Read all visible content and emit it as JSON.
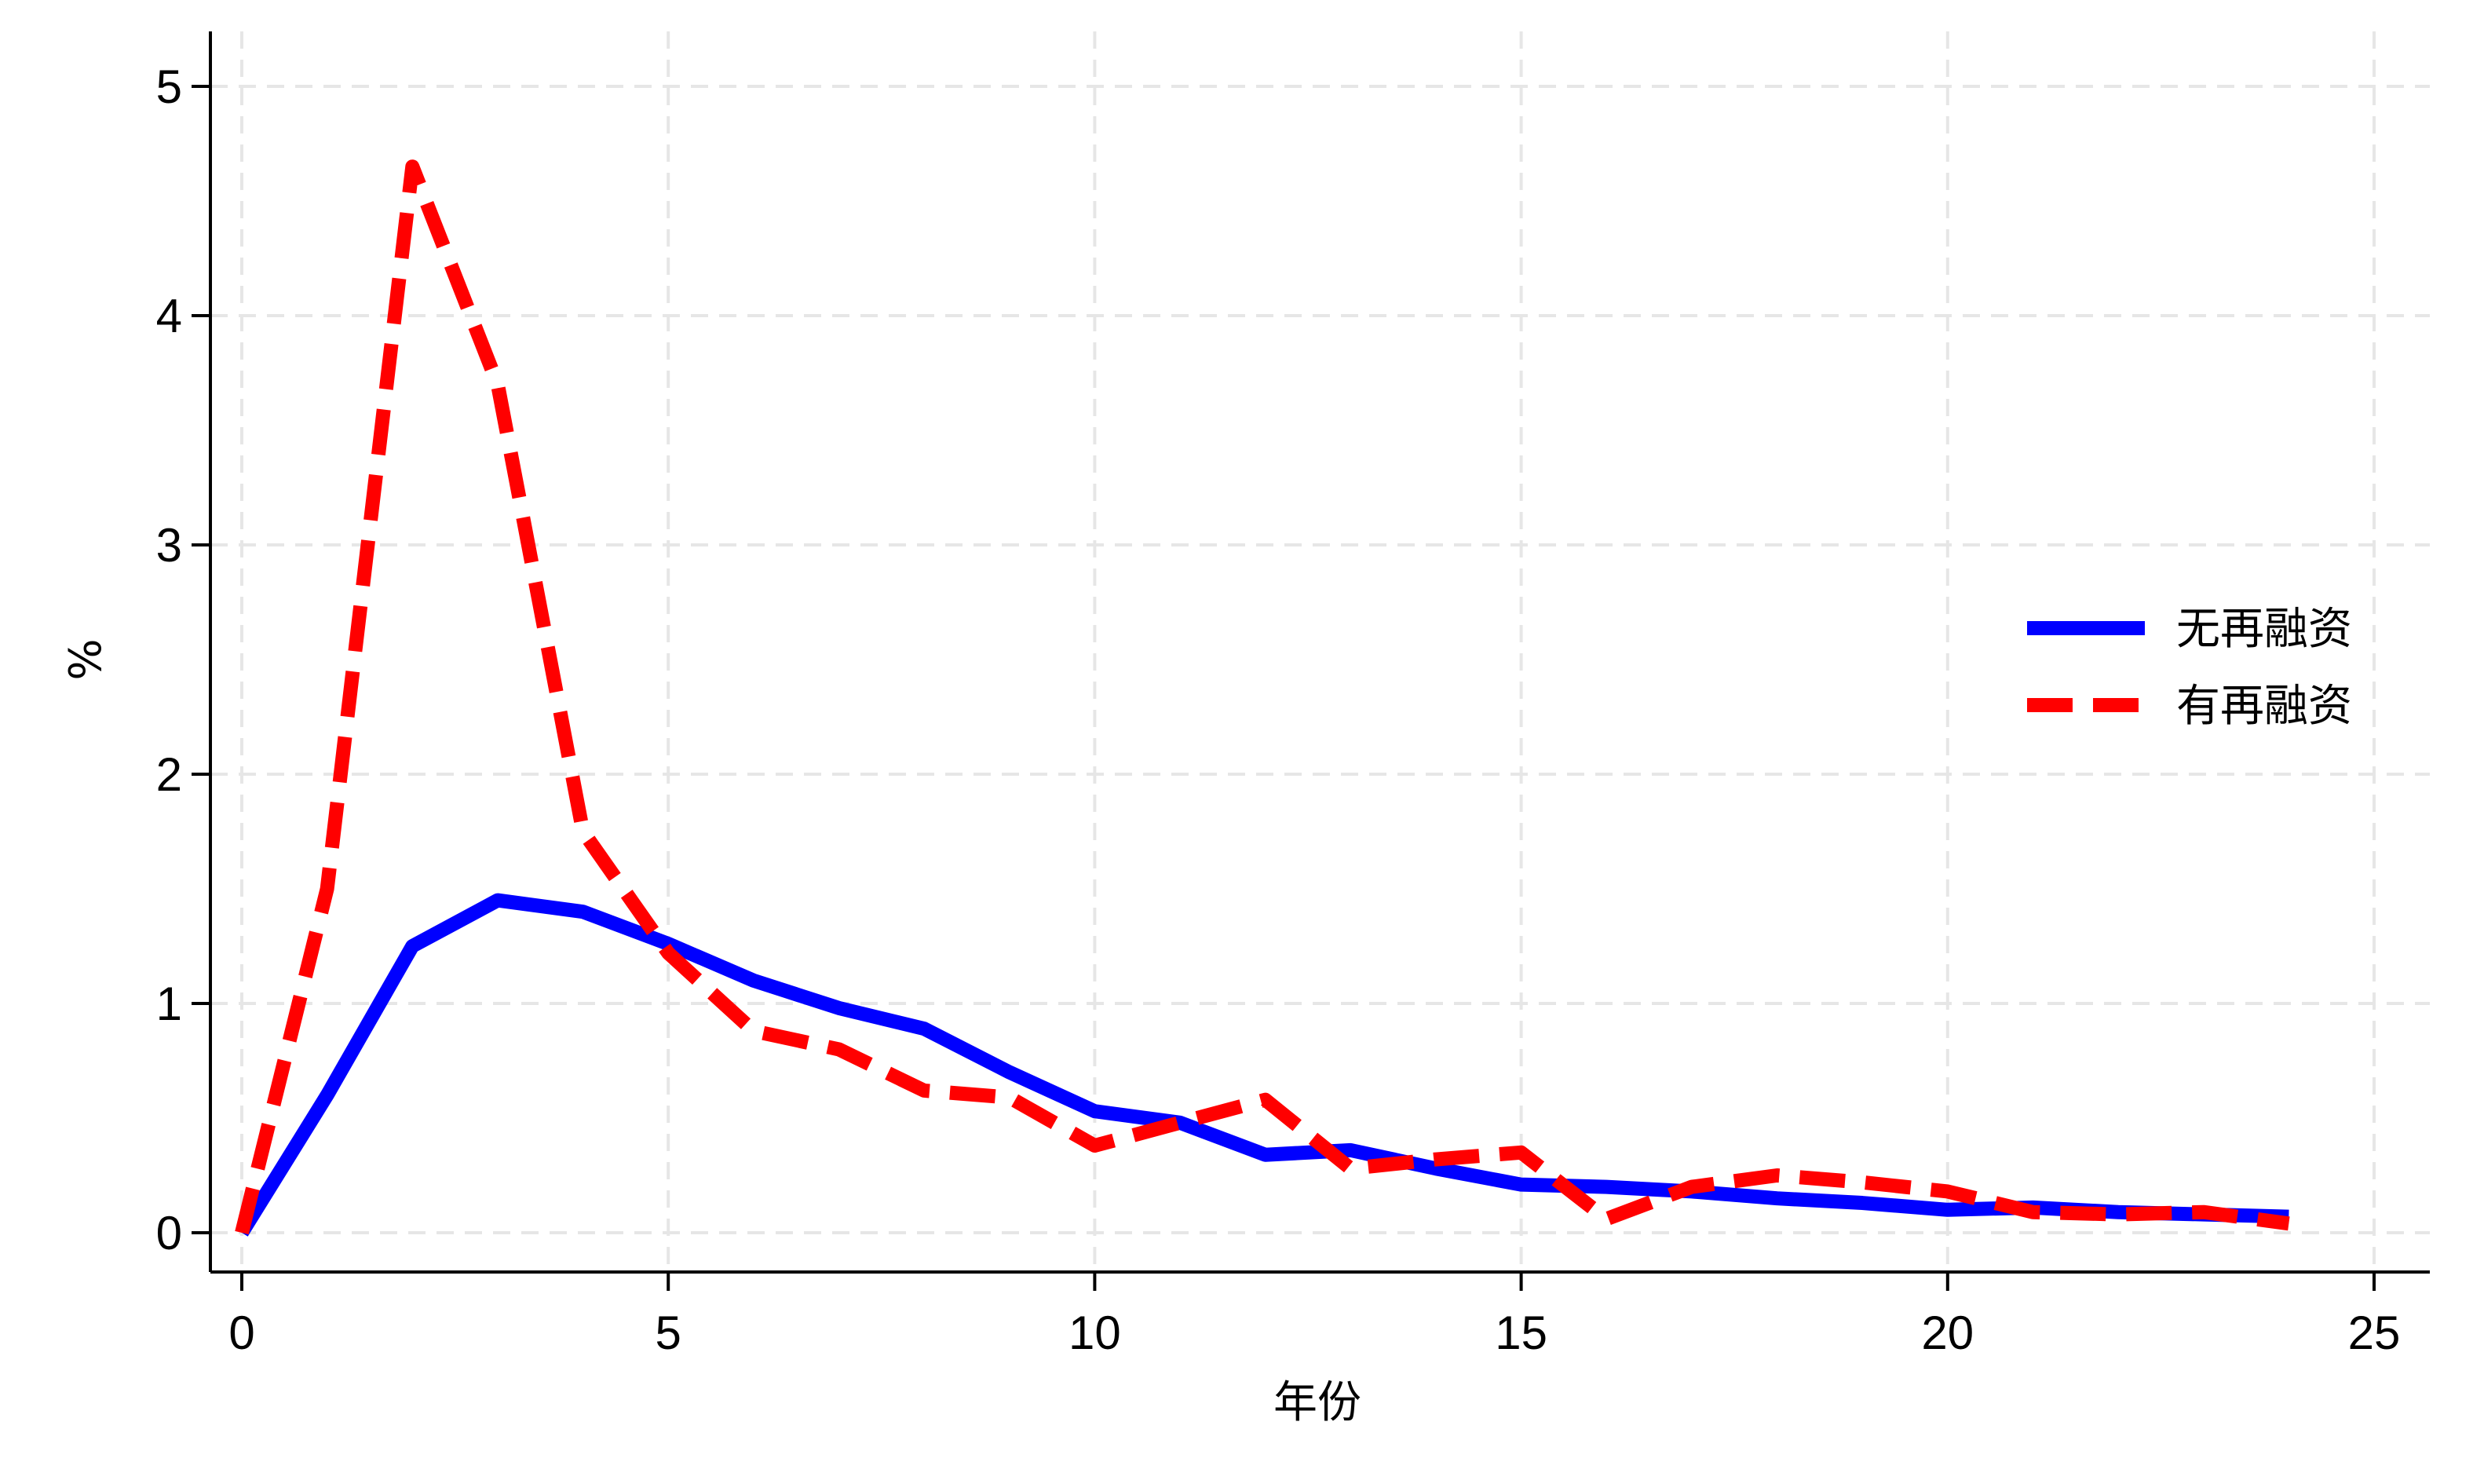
{
  "chart_data": {
    "type": "line",
    "xlabel": "年份",
    "ylabel": "%",
    "xlim": [
      0,
      25
    ],
    "ylim": [
      0,
      5
    ],
    "xticks": [
      0,
      5,
      10,
      15,
      20,
      25
    ],
    "yticks": [
      0,
      1,
      2,
      3,
      4,
      5
    ],
    "grid": true,
    "legend_position": "right",
    "x": [
      0,
      1,
      2,
      3,
      4,
      5,
      6,
      7,
      8,
      9,
      10,
      11,
      12,
      13,
      14,
      15,
      16,
      17,
      18,
      19,
      20,
      21,
      22,
      23,
      24
    ],
    "series": [
      {
        "name": "无再融资",
        "color": "#0000ff",
        "style": "solid",
        "values": [
          0.0,
          0.6,
          1.25,
          1.45,
          1.4,
          1.26,
          1.1,
          0.98,
          0.89,
          0.7,
          0.53,
          0.48,
          0.34,
          0.36,
          0.28,
          0.21,
          0.2,
          0.18,
          0.15,
          0.13,
          0.1,
          0.11,
          0.09,
          0.08,
          0.07
        ]
      },
      {
        "name": "有再融资",
        "color": "#ff0000",
        "style": "dashed",
        "values": [
          0.0,
          1.5,
          4.65,
          3.7,
          1.75,
          1.22,
          0.88,
          0.8,
          0.62,
          0.59,
          0.38,
          0.48,
          0.58,
          0.28,
          0.32,
          0.35,
          0.06,
          0.2,
          0.25,
          0.22,
          0.18,
          0.09,
          0.08,
          0.09,
          0.04
        ]
      }
    ]
  }
}
